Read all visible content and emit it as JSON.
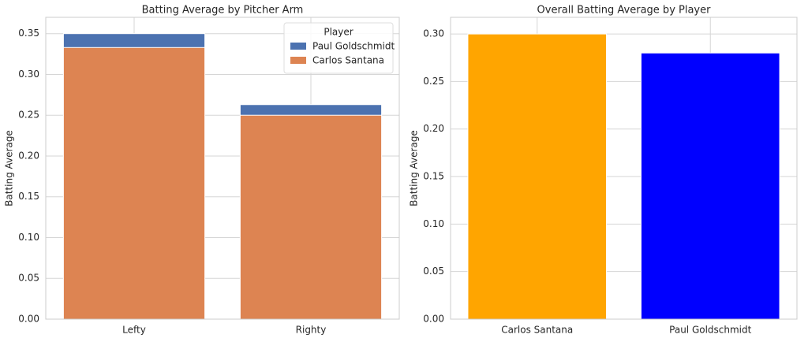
{
  "chart_data": [
    {
      "type": "bar",
      "title": "Batting Average by Pitcher Arm",
      "ylabel": "Batting Average",
      "categories": [
        "Lefty",
        "Righty"
      ],
      "series": [
        {
          "name": "Paul Goldschmidt",
          "color": "#4c72b0",
          "values": [
            0.35,
            0.263
          ]
        },
        {
          "name": "Carlos Santana",
          "color": "#dd8452",
          "values": [
            0.333,
            0.25
          ]
        }
      ],
      "legend_title": "Player",
      "legend": "upper right",
      "grid": true,
      "ylim": [
        0,
        0.37
      ],
      "yticks": [
        {
          "value": 0,
          "label": "0.00"
        },
        {
          "value": 0.05,
          "label": "0.05"
        },
        {
          "value": 0.1,
          "label": "0.10"
        },
        {
          "value": 0.15,
          "label": "0.15"
        },
        {
          "value": 0.2,
          "label": "0.20"
        },
        {
          "value": 0.25,
          "label": "0.25"
        },
        {
          "value": 0.3,
          "label": "0.30"
        },
        {
          "value": 0.35,
          "label": "0.35"
        }
      ]
    },
    {
      "type": "bar",
      "title": "Overall Batting Average by Player",
      "ylabel": "Batting Average",
      "categories": [
        "Carlos Santana",
        "Paul Goldschmidt"
      ],
      "values": [
        0.3,
        0.28
      ],
      "colors": [
        "orange",
        "blue"
      ],
      "grid": true,
      "ylim": [
        0,
        0.3175
      ],
      "yticks": [
        {
          "value": 0,
          "label": "0.00"
        },
        {
          "value": 0.05,
          "label": "0.05"
        },
        {
          "value": 0.1,
          "label": "0.10"
        },
        {
          "value": 0.15,
          "label": "0.15"
        },
        {
          "value": 0.2,
          "label": "0.20"
        },
        {
          "value": 0.25,
          "label": "0.25"
        },
        {
          "value": 0.3,
          "label": "0.30"
        }
      ]
    }
  ]
}
